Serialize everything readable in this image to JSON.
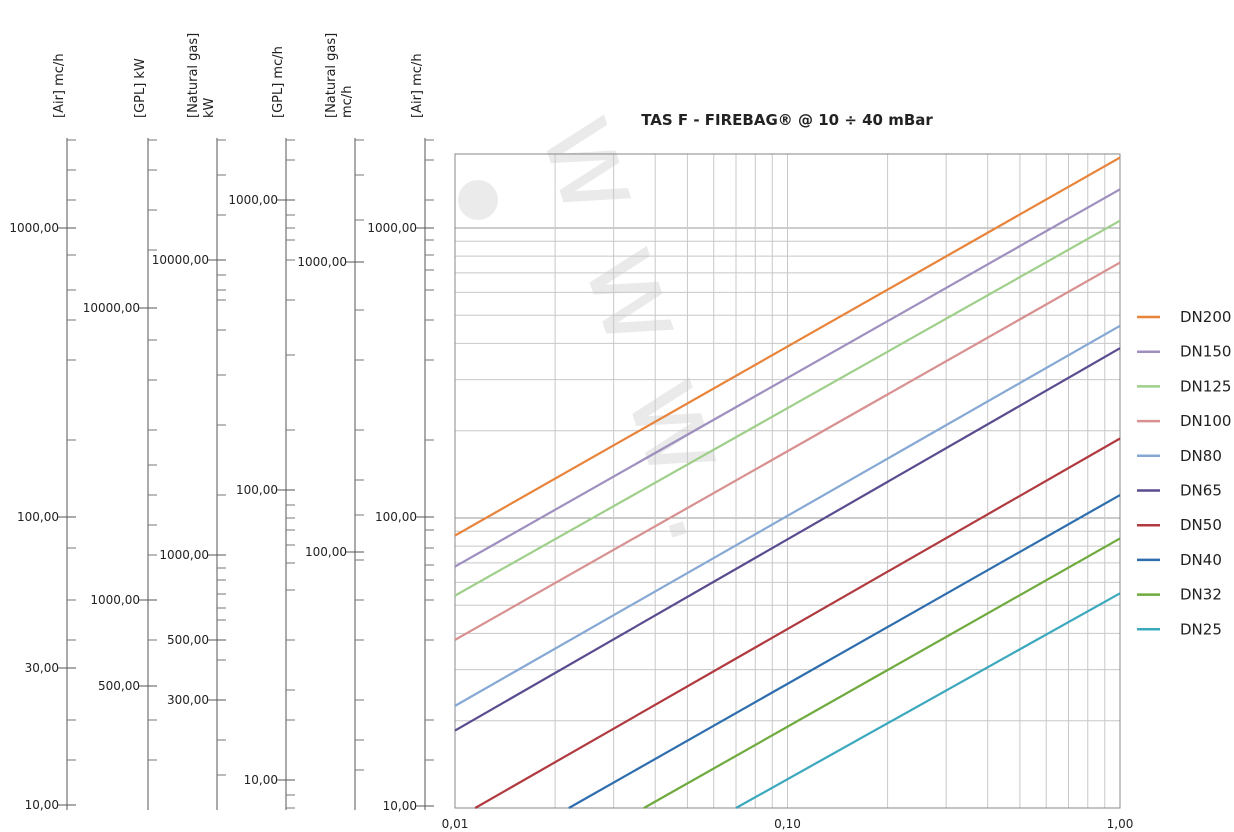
{
  "chart_data": {
    "type": "line",
    "title": "TAS F - FIREBAG® @ 10 ÷ 40 mBar",
    "x_axis": {
      "scale": "log",
      "range": [
        0.01,
        1.0
      ],
      "tick_labels": [
        "0,01",
        "0,10",
        "1,00"
      ]
    },
    "y_axis": {
      "scale": "log",
      "range": [
        10,
        1800
      ],
      "tick_labels": [
        "10,00",
        "100,00",
        "1000,00"
      ],
      "unit_label": "[Air] mc/h"
    },
    "grid": true,
    "legend_placement": "right",
    "scales": [
      {
        "label": "[Air] mc/h",
        "ticks": [
          {
            "value": 1000,
            "text": "1000,00"
          },
          {
            "value": 100,
            "text": "100,00"
          },
          {
            "value": 30,
            "text": "30,00"
          },
          {
            "value": 10,
            "text": "10,00"
          }
        ]
      },
      {
        "label": "[GPL] kW",
        "ticks": [
          {
            "value": 10000,
            "text": "10000,00"
          },
          {
            "value": 1000,
            "text": "1000,00"
          },
          {
            "value": 500,
            "text": "500,00"
          }
        ]
      },
      {
        "label": "[Natural gas] kW",
        "ticks": [
          {
            "value": 10000,
            "text": "10000,00"
          },
          {
            "value": 1000,
            "text": "1000,00"
          },
          {
            "value": 500,
            "text": "500,00"
          },
          {
            "value": 300,
            "text": "300,00"
          }
        ]
      },
      {
        "label": "[GPL] mc/h",
        "ticks": [
          {
            "value": 1000,
            "text": "1000,00"
          },
          {
            "value": 100,
            "text": "100,00"
          },
          {
            "value": 10,
            "text": "10,00"
          }
        ]
      },
      {
        "label": "[Natural gas] mc/h",
        "ticks": [
          {
            "value": 1000,
            "text": "1000,00"
          },
          {
            "value": 100,
            "text": "100,00"
          }
        ]
      },
      {
        "label": "[Air] mc/h",
        "ticks": [
          {
            "value": 1000,
            "text": "1000,00"
          },
          {
            "value": 100,
            "text": "100,00"
          },
          {
            "value": 10,
            "text": "10,00"
          }
        ]
      }
    ],
    "series": [
      {
        "name": "DN200",
        "color": "#E8833A",
        "x": [
          0.01,
          1.0
        ],
        "y": [
          87,
          1750
        ]
      },
      {
        "name": "DN150",
        "color": "#9E8FBF",
        "x": [
          0.01,
          1.0
        ],
        "y": [
          68,
          1360
        ]
      },
      {
        "name": "DN125",
        "color": "#9FCF8A",
        "x": [
          0.01,
          1.0
        ],
        "y": [
          54,
          1060
        ]
      },
      {
        "name": "DN100",
        "color": "#D89090",
        "x": [
          0.01,
          1.0
        ],
        "y": [
          38,
          760
        ]
      },
      {
        "name": "DN80",
        "color": "#86A8D4",
        "x": [
          0.01,
          1.0
        ],
        "y": [
          22.5,
          460
        ]
      },
      {
        "name": "DN65",
        "color": "#5B4B8F",
        "x": [
          0.01,
          1.0
        ],
        "y": [
          18.5,
          385
        ]
      },
      {
        "name": "DN50",
        "color": "#B03A3F",
        "x": [
          0.0115,
          1.0
        ],
        "y": [
          10,
          188
        ]
      },
      {
        "name": "DN40",
        "color": "#2F6EAE",
        "x": [
          0.022,
          1.0
        ],
        "y": [
          10,
          120
        ]
      },
      {
        "name": "DN32",
        "color": "#6FAA3F",
        "x": [
          0.037,
          1.0
        ],
        "y": [
          10,
          85
        ]
      },
      {
        "name": "DN25",
        "color": "#3BA8BE",
        "x": [
          0.07,
          1.0
        ],
        "y": [
          10,
          55
        ]
      }
    ]
  }
}
